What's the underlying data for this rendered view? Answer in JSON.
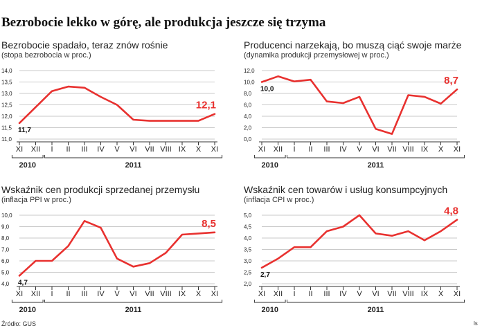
{
  "headline": "Bezrobocie lekko w górę, ale produkcja jeszcze się trzyma",
  "source": "Źródło: GUS",
  "source_mark": "ls",
  "colors": {
    "line": "#e8312f",
    "highlight": "#e8312f",
    "grid": "#b8b8b8",
    "axis": "#333333",
    "text": "#222222"
  },
  "chart_data": [
    {
      "type": "line",
      "title": "Bezrobocie spadało, teraz znów rośnie",
      "subtitle": "(stopa bezrobocia w proc.)",
      "categories": [
        "XI",
        "XII",
        "I",
        "II",
        "III",
        "IV",
        "V",
        "VI",
        "VII",
        "VIII",
        "IX",
        "X",
        "XI"
      ],
      "year_labels": [
        {
          "label": "2010",
          "from": 0,
          "to": 1
        },
        {
          "label": "2011",
          "from": 2,
          "to": 12
        }
      ],
      "values": [
        11.7,
        12.4,
        13.1,
        13.3,
        13.25,
        12.85,
        12.5,
        11.85,
        11.8,
        11.8,
        11.8,
        11.8,
        12.1
      ],
      "first_label": "11,7",
      "last_label": "12,1",
      "yticks": [
        "14,0",
        "13,5",
        "13,0",
        "12,5",
        "12,0",
        "11,5",
        "11,0"
      ],
      "ylim": [
        11.0,
        14.0
      ],
      "grid": true
    },
    {
      "type": "line",
      "title": "Producenci narzekają, bo muszą ciąć swoje marże",
      "subtitle": "(dynamika produkcji przemysłowej w proc.)",
      "categories": [
        "XI",
        "XII",
        "I",
        "II",
        "III",
        "IV",
        "V",
        "VI",
        "VII",
        "VIII",
        "IX",
        "X",
        "XI"
      ],
      "year_labels": [
        {
          "label": "2010",
          "from": 0,
          "to": 1
        },
        {
          "label": "2011",
          "from": 2,
          "to": 12
        }
      ],
      "values": [
        10.0,
        11.0,
        10.1,
        10.4,
        6.6,
        6.3,
        7.4,
        1.8,
        0.9,
        7.7,
        7.4,
        6.2,
        8.7
      ],
      "first_label": "10,0",
      "last_label": "8,7",
      "yticks": [
        "12,0",
        "10,0",
        "8,0",
        "6,0",
        "4,0",
        "2,0",
        "0,0"
      ],
      "ylim": [
        0,
        12.0
      ],
      "grid": true
    },
    {
      "type": "line",
      "title": "Wskaźnik cen produkcji sprzedanej przemysłu",
      "subtitle": "(inflacja PPI w proc.)",
      "categories": [
        "XI",
        "XII",
        "I",
        "II",
        "III",
        "IV",
        "V",
        "VI",
        "VII",
        "VIII",
        "IX",
        "X",
        "XI"
      ],
      "year_labels": [
        {
          "label": "2010",
          "from": 0,
          "to": 1
        },
        {
          "label": "2011",
          "from": 2,
          "to": 12
        }
      ],
      "values": [
        4.7,
        6.0,
        6.0,
        7.3,
        9.5,
        8.9,
        6.2,
        5.5,
        5.8,
        6.7,
        8.3,
        8.4,
        8.5
      ],
      "first_label": "4,7",
      "last_label": "8,5",
      "yticks": [
        "10,0",
        "9,0",
        "8,0",
        "7,0",
        "6,0",
        "5,0",
        "4,0"
      ],
      "ylim": [
        4.0,
        10.0
      ],
      "grid": true
    },
    {
      "type": "line",
      "title": "Wskaźnik cen towarów i usług konsumpcyjnych",
      "subtitle": "(inflacja CPI w proc.)",
      "categories": [
        "XI",
        "XII",
        "I",
        "II",
        "III",
        "IV",
        "V",
        "VI",
        "VII",
        "VIII",
        "IX",
        "X",
        "XI"
      ],
      "year_labels": [
        {
          "label": "2010",
          "from": 0,
          "to": 1
        },
        {
          "label": "2011",
          "from": 2,
          "to": 12
        }
      ],
      "values": [
        2.7,
        3.1,
        3.6,
        3.6,
        4.3,
        4.5,
        5.0,
        4.2,
        4.1,
        4.3,
        3.9,
        4.3,
        4.8
      ],
      "first_label": "2,7",
      "last_label": "4,8",
      "yticks": [
        "5,0",
        "4,5",
        "4,0",
        "3,5",
        "3,0",
        "2,5",
        "2,0"
      ],
      "ylim": [
        2.0,
        5.0
      ],
      "grid": true
    }
  ]
}
